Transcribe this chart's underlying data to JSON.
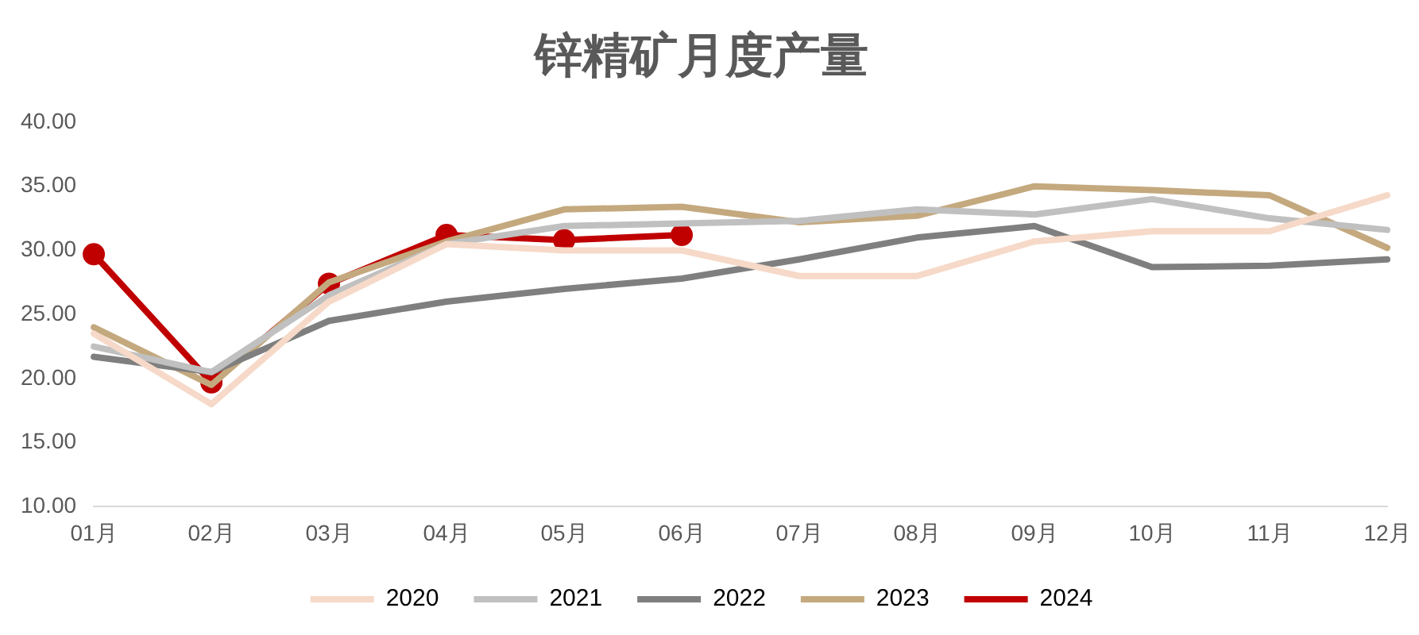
{
  "chart_data": {
    "type": "line",
    "title": "锌精矿月度产量",
    "categories": [
      "01月",
      "02月",
      "03月",
      "04月",
      "05月",
      "06月",
      "07月",
      "08月",
      "09月",
      "10月",
      "11月",
      "12月"
    ],
    "ylim": [
      10,
      40
    ],
    "yticks": [
      {
        "value": 10,
        "label": "10.00"
      },
      {
        "value": 15,
        "label": "15.00"
      },
      {
        "value": 20,
        "label": "20.00"
      },
      {
        "value": 25,
        "label": "25.00"
      },
      {
        "value": 30,
        "label": "30.00"
      },
      {
        "value": 35,
        "label": "35.00"
      },
      {
        "value": 40,
        "label": "40.00"
      }
    ],
    "grid": false,
    "legend": "bottom",
    "line_style": "solid",
    "series": [
      {
        "name": "2020",
        "color": "#f6d9c8",
        "marker": "none",
        "values": [
          23.5,
          18.0,
          26.0,
          30.5,
          30.0,
          30.0,
          28.0,
          28.0,
          30.7,
          31.5,
          31.5,
          34.3
        ]
      },
      {
        "name": "2021",
        "color": "#c0c0c0",
        "marker": "none",
        "values": [
          22.5,
          20.5,
          26.5,
          30.5,
          31.9,
          32.1,
          32.3,
          33.2,
          32.8,
          34.0,
          32.5,
          31.6
        ]
      },
      {
        "name": "2022",
        "color": "#7f7f7f",
        "marker": "none",
        "values": [
          21.7,
          20.5,
          24.5,
          26.0,
          27.0,
          27.8,
          29.3,
          31.0,
          31.9,
          28.7,
          28.8,
          29.3
        ]
      },
      {
        "name": "2023",
        "color": "#c4a97f",
        "marker": "none",
        "values": [
          24.0,
          19.5,
          27.5,
          30.7,
          33.2,
          33.4,
          32.2,
          32.7,
          35.0,
          34.7,
          34.3,
          30.2
        ]
      },
      {
        "name": "2024",
        "color": "#c00000",
        "marker": "circle",
        "values": [
          29.7,
          19.7,
          27.4,
          31.2,
          30.8,
          31.2,
          null,
          null,
          null,
          null,
          null,
          null
        ]
      }
    ]
  }
}
